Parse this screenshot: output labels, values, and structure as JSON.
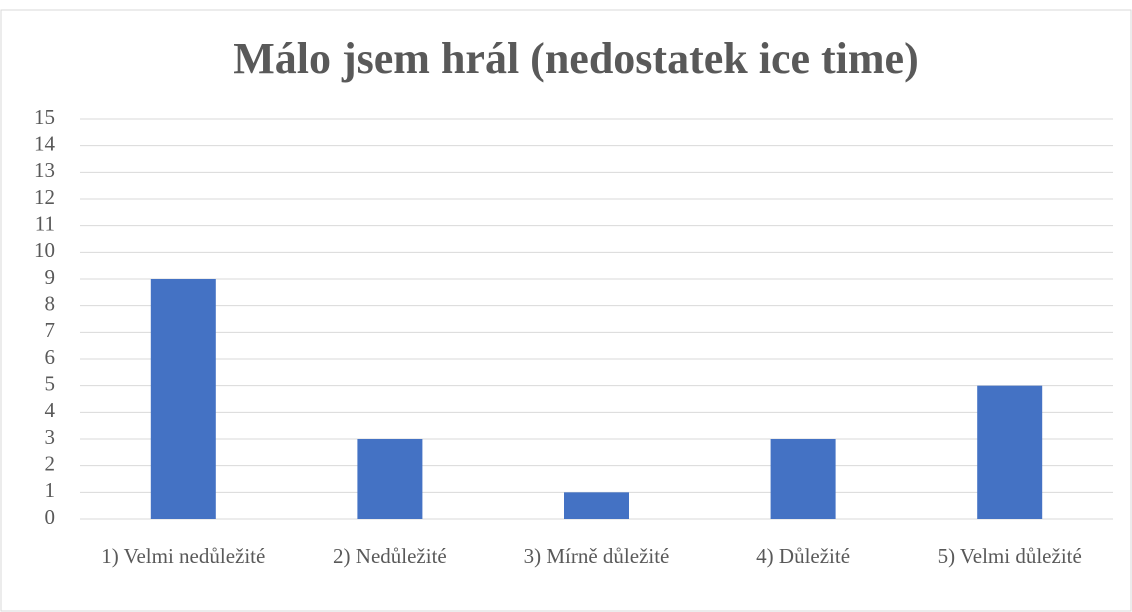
{
  "chart_data": {
    "type": "bar",
    "title": "Málo jsem hrál (nedostatek ice time)",
    "categories": [
      "1) Velmi nedůležité",
      "2) Nedůležité",
      "3) Mírně důležité",
      "4) Důležité",
      "5) Velmi důležité"
    ],
    "values": [
      9,
      3,
      1,
      3,
      5
    ],
    "color": "#4472c4",
    "ylim": [
      0,
      15
    ],
    "yticks": [
      0,
      1,
      2,
      3,
      4,
      5,
      6,
      7,
      8,
      9,
      10,
      11,
      12,
      13,
      14,
      15
    ],
    "grid": true
  }
}
